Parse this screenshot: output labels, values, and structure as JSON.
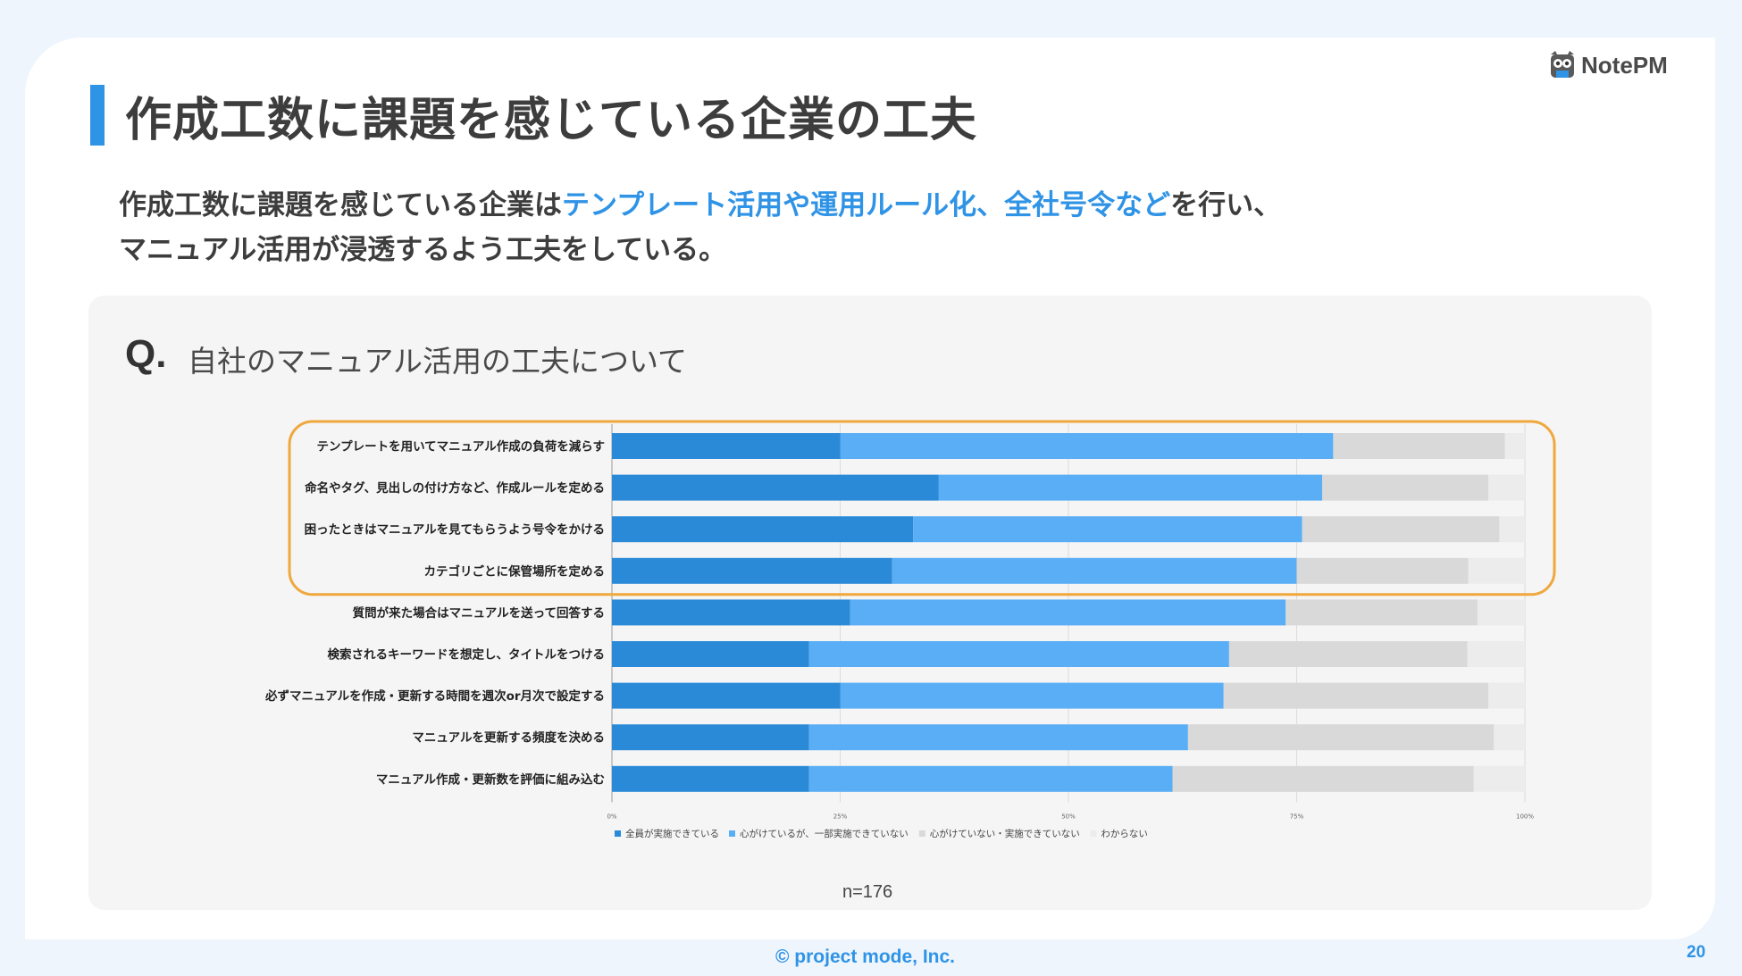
{
  "slide": {
    "title": "作成工数に課題を感じている企業の工夫",
    "logo_text": "NotePM",
    "lead_part1": "作成工数に課題を感じている企業は",
    "lead_highlight": "テンプレート活用や運用ルール化、全社号令など",
    "lead_part2": "を行い、",
    "lead_line2": "マニュアル活用が浸透するよう工夫をしている。",
    "question_mark": "Q.",
    "question_text": "自社のマニュアル活用の工夫について",
    "sample_size": "n=176",
    "footer": "© project mode, Inc.",
    "page_number": "20",
    "accent_color": "#2f93e6",
    "highlight_box_color": "#f0a73c"
  },
  "chart_data": {
    "type": "bar",
    "orientation": "horizontal",
    "stacked": true,
    "percent": true,
    "categories": [
      "テンプレートを用いてマニュアル作成の負荷を減らす",
      "命名やタグ、見出しの付け方など、作成ルールを定める",
      "困ったときはマニュアルを見てもらうよう号令をかける",
      "カテゴリごとに保管場所を定める",
      "質問が来た場合はマニュアルを送って回答する",
      "検索されるキーワードを想定し、タイトルをつける",
      "必ずマニュアルを作成・更新する時間を週次or月次で設定する",
      "マニュアルを更新する頻度を決める",
      "マニュアル作成・更新数を評価に組み込む"
    ],
    "series": [
      {
        "name": "全員が実施できている",
        "color": "#2b8ad8",
        "values": [
          25,
          35.8,
          33,
          30.7,
          26.1,
          21.6,
          25,
          21.6,
          21.6
        ]
      },
      {
        "name": "心がけているが、一部実施できていない",
        "color": "#5aaef5",
        "values": [
          54,
          42,
          42.6,
          44.3,
          47.7,
          46,
          42,
          41.5,
          39.8
        ]
      },
      {
        "name": "心がけていない・実施できていない",
        "color": "#d9d9d9",
        "values": [
          18.8,
          18.2,
          21.6,
          18.8,
          21,
          26.1,
          29,
          33.5,
          33
        ]
      },
      {
        "name": "わからない",
        "color": "#ececec",
        "values": [
          2.2,
          4,
          2.8,
          6.2,
          5.2,
          6.3,
          4,
          3.4,
          5.6
        ]
      }
    ],
    "xlim": [
      0,
      100
    ],
    "x_ticks": [
      "0%",
      "25%",
      "50%",
      "75%",
      "100%"
    ],
    "highlighted_rows": [
      0,
      1,
      2,
      3
    ]
  }
}
